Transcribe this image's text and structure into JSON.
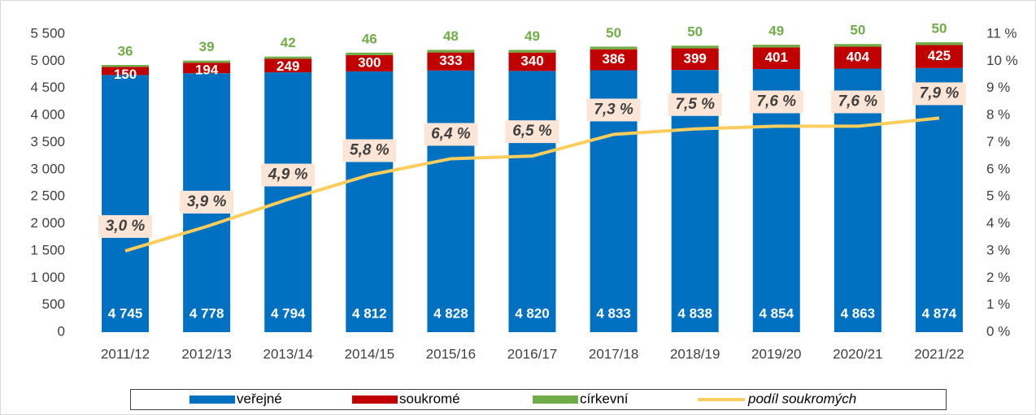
{
  "chart_data": {
    "type": "bar",
    "stacked": true,
    "categories": [
      "2011/12",
      "2012/13",
      "2013/14",
      "2014/15",
      "2015/16",
      "2016/17",
      "2017/18",
      "2018/19",
      "2019/20",
      "2020/21",
      "2021/22"
    ],
    "series": [
      {
        "name": "veřejné",
        "color": "#0070c0",
        "values": [
          4745,
          4778,
          4794,
          4812,
          4828,
          4820,
          4833,
          4838,
          4854,
          4863,
          4874
        ],
        "value_labels": [
          "4 745",
          "4 778",
          "4 794",
          "4 812",
          "4 828",
          "4 820",
          "4 833",
          "4 838",
          "4 854",
          "4 863",
          "4 874"
        ]
      },
      {
        "name": "soukromé",
        "color": "#c00000",
        "values": [
          150,
          194,
          249,
          300,
          333,
          340,
          386,
          399,
          401,
          404,
          425
        ]
      },
      {
        "name": "církevní",
        "color": "#70ad47",
        "values": [
          36,
          39,
          42,
          46,
          48,
          49,
          50,
          50,
          49,
          50,
          50
        ]
      },
      {
        "name": "podíl soukromých",
        "type": "line",
        "axis": "y2",
        "color": "#fbcd5c",
        "values": [
          3.0,
          3.9,
          4.9,
          5.8,
          6.4,
          6.5,
          7.3,
          7.5,
          7.6,
          7.6,
          7.9
        ],
        "value_labels": [
          "3,0 %",
          "3,9 %",
          "4,9 %",
          "5,8 %",
          "6,4 %",
          "6,5 %",
          "7,3 %",
          "7,5 %",
          "7,6 %",
          "7,6 %",
          "7,9 %"
        ]
      }
    ],
    "ylim": [
      0,
      5500
    ],
    "yticks": [
      0,
      {
        "value": 500,
        "label": "500"
      },
      {
        "value": 1000,
        "label": "1 000"
      },
      {
        "value": 1500,
        "label": "1 500"
      },
      {
        "value": 2000,
        "label": "2 000"
      },
      {
        "value": 2500,
        "label": "2 500"
      },
      {
        "value": 3000,
        "label": "3 000"
      },
      {
        "value": 3500,
        "label": "3 500"
      },
      {
        "value": 4000,
        "label": "4 000"
      },
      {
        "value": 4500,
        "label": "4 500"
      },
      {
        "value": 5000,
        "label": "5 000"
      },
      {
        "value": 5500,
        "label": "5 500"
      }
    ],
    "y2lim": [
      0,
      11
    ],
    "y2ticks": [
      {
        "value": 0,
        "label": "0 %"
      },
      {
        "value": 1,
        "label": "1 %"
      },
      {
        "value": 2,
        "label": "2 %"
      },
      {
        "value": 3,
        "label": "3 %"
      },
      {
        "value": 4,
        "label": "4 %"
      },
      {
        "value": 5,
        "label": "5 %"
      },
      {
        "value": 6,
        "label": "6 %"
      },
      {
        "value": 7,
        "label": "7 %"
      },
      {
        "value": 8,
        "label": "8 %"
      },
      {
        "value": 9,
        "label": "9 %"
      },
      {
        "value": 10,
        "label": "10 %"
      },
      {
        "value": 11,
        "label": "11 %"
      }
    ],
    "legend": "bottom"
  }
}
